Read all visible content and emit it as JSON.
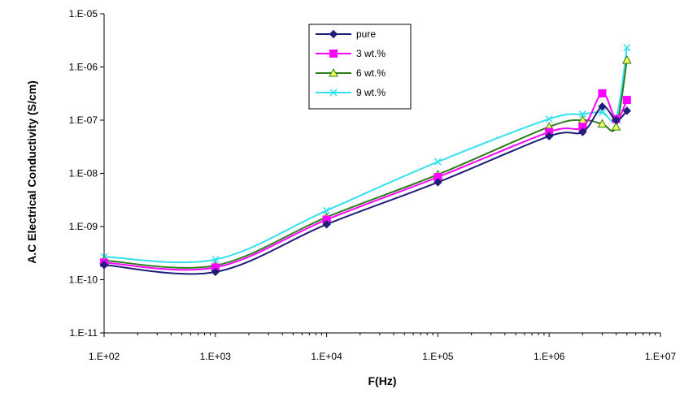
{
  "chart_data": {
    "type": "line",
    "xscale": "log",
    "yscale": "log",
    "xlabel": "F(Hz)",
    "ylabel": "A.C Electrical Conductivity (S/cm)",
    "xlim": [
      100,
      10000000
    ],
    "ylim": [
      1e-11,
      1e-05
    ],
    "x_tick_labels": [
      "1.E+02",
      "1.E+03",
      "1.E+04",
      "1.E+05",
      "1.E+06",
      "1.E+07"
    ],
    "y_tick_labels": [
      "1.E-11",
      "1.E-10",
      "1.E-09",
      "1.E-08",
      "1.E-07",
      "1.E-06",
      "1.E-05"
    ],
    "grid": false,
    "legend_position": "top-center",
    "x": [
      100,
      1000,
      10000,
      100000,
      1000000,
      2000000,
      3000000,
      4000000,
      5000000
    ],
    "series": [
      {
        "name": "pure",
        "color": "#1f1f7a",
        "marker": "diamond",
        "values": [
          1.9e-10,
          1.4e-10,
          1.1e-09,
          6.8e-09,
          5e-08,
          6e-08,
          1.8e-07,
          1e-07,
          1.5e-07
        ]
      },
      {
        "name": "3 wt.%",
        "color": "#ff00ff",
        "marker": "square",
        "values": [
          2.1e-10,
          1.7e-10,
          1.35e-09,
          8.5e-09,
          6e-08,
          7.5e-08,
          3.2e-07,
          1.05e-07,
          2.4e-07
        ]
      },
      {
        "name": "6 wt.%",
        "color": "#2e7d1a",
        "marker": "triangle",
        "values": [
          2.3e-10,
          1.85e-10,
          1.5e-09,
          9.5e-09,
          7.5e-08,
          1e-07,
          8.5e-08,
          7.5e-08,
          1.35e-06
        ]
      },
      {
        "name": "9 wt.%",
        "color": "#33e0f0",
        "marker": "x",
        "values": [
          2.7e-10,
          2.4e-10,
          2e-09,
          1.65e-08,
          1.05e-07,
          1.3e-07,
          1.4e-07,
          1.1e-07,
          2.3e-06
        ]
      }
    ]
  }
}
